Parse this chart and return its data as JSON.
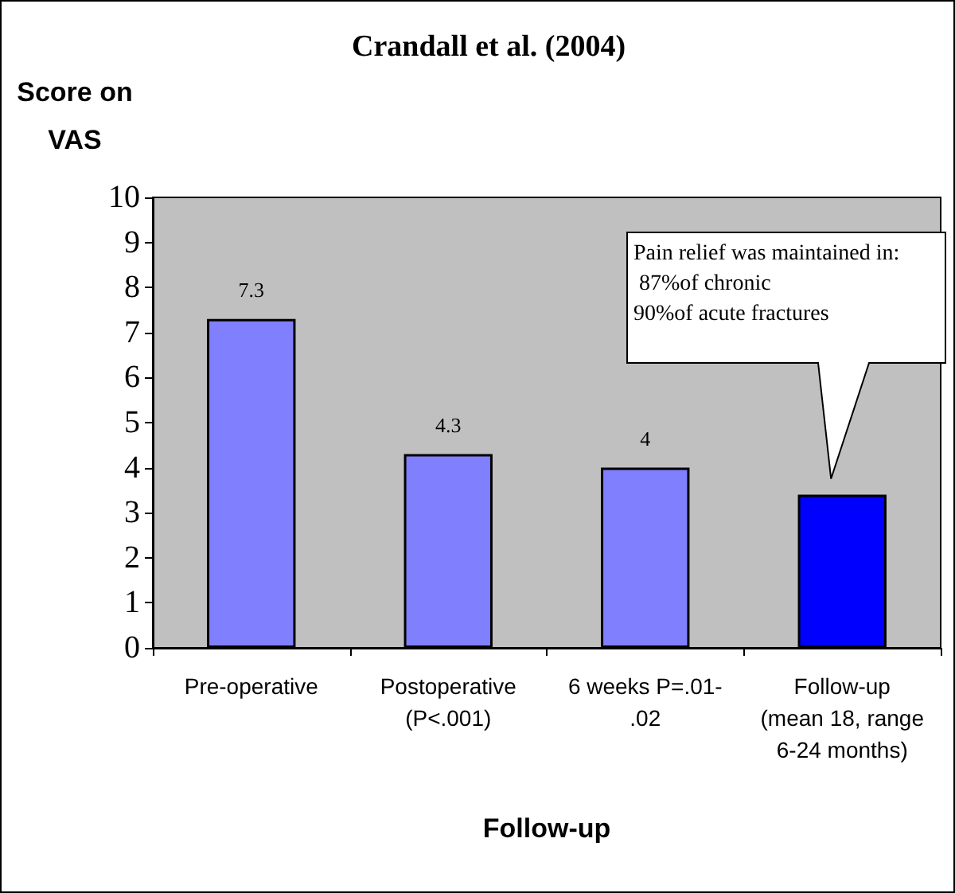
{
  "chart_data": {
    "type": "bar",
    "title": "Crandall et al. (2004)",
    "ylabel": "Score on\nVAS",
    "xlabel": "Follow-up",
    "categories": [
      "Pre-operative",
      "Postoperative\n(P<.001)",
      "6 weeks P=.01-\n.02",
      "Follow-up\n(mean 18, range\n6-24 months)"
    ],
    "values": [
      7.3,
      4.3,
      4,
      3.4
    ],
    "colors": [
      "#8080ff",
      "#8080ff",
      "#8080ff",
      "#0000ff"
    ],
    "value_labels": [
      "7.3",
      "4.3",
      "4",
      null
    ],
    "annotations": [
      "Pain relief was maintained in:\n 87%of chronic\n90%of acute fractures"
    ],
    "ylim": [
      0,
      10
    ],
    "yticks": [
      0,
      1,
      2,
      3,
      4,
      5,
      6,
      7,
      8,
      9,
      10
    ],
    "grid": false
  }
}
